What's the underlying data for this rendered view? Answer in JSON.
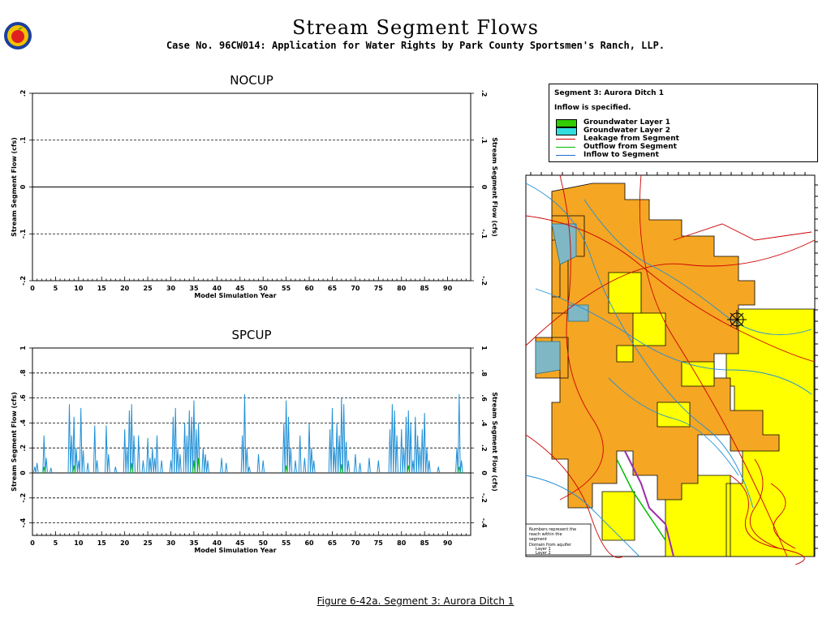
{
  "header": {
    "title": "Stream Segment Flows",
    "subtitle": "Case No. 96CW014: Application for Water Rights by Park County Sportsmen's Ranch, LLP."
  },
  "footer": {
    "caption": "Figure 6-42a.   Segment 3: Aurora Ditch 1"
  },
  "legend": {
    "segment": "Segment 3: Aurora Ditch 1",
    "inflow_note": "Inflow is specified.",
    "items": [
      {
        "label": "Groundwater Layer 1",
        "color": "#33cc00",
        "kind": "swatch"
      },
      {
        "label": "Groundwater Layer 2",
        "color": "#33dddd",
        "kind": "swatch"
      },
      {
        "label": "Leakage from Segment",
        "color": "#cc0000",
        "kind": "line"
      },
      {
        "label": "Outflow from Segment",
        "color": "#00bb00",
        "kind": "line"
      },
      {
        "label": "Inflow to Segment",
        "color": "#1f6fd6",
        "kind": "line"
      }
    ]
  },
  "map": {
    "colors": {
      "layer1_fill": "#f5a623",
      "layer2_fill": "#ffff00",
      "roads": "#cc0000",
      "streams": "#1f8fd6"
    },
    "note_lines": [
      "Numbers represent the",
      "reach within the",
      "segment",
      "Domain from aquifer",
      "Layer 1",
      "Layer 2"
    ]
  },
  "chart_data": [
    {
      "type": "line",
      "title": "NOCUP",
      "xlabel": "Model Simulation Year",
      "ylabel": "Stream Segment Flow (cfs)",
      "xlim": [
        0,
        95
      ],
      "ylim": [
        -0.2,
        0.2
      ],
      "xticks": [
        "0",
        "5",
        "10",
        "15",
        "20",
        "25",
        "30",
        "35",
        "40",
        "45",
        "50",
        "55",
        "60",
        "65",
        "70",
        "75",
        "80",
        "85",
        "90"
      ],
      "yticks": [
        ".2",
        ".1",
        "0",
        "-.1",
        "-.2"
      ],
      "grid": "dashed horizontal",
      "series": []
    },
    {
      "type": "line",
      "title": "SPCUP",
      "xlabel": "Model Simulation Year",
      "ylabel": "Stream Segment Flow (cfs)",
      "xlim": [
        0,
        95
      ],
      "ylim": [
        -0.5,
        1.0
      ],
      "xticks": [
        "0",
        "5",
        "10",
        "15",
        "20",
        "25",
        "30",
        "35",
        "40",
        "45",
        "50",
        "55",
        "60",
        "65",
        "70",
        "75",
        "80",
        "85",
        "90"
      ],
      "yticks": [
        "1",
        ".8",
        ".6",
        ".4",
        ".2",
        "0",
        "-.2",
        "-.4"
      ],
      "grid": "dashed horizontal",
      "series": [
        {
          "color": "#1f8fd6",
          "peaks": [
            [
              0.5,
              0.05
            ],
            [
              1.0,
              0.08
            ],
            [
              2.5,
              0.3
            ],
            [
              3.0,
              0.12
            ],
            [
              4.0,
              0.04
            ],
            [
              8.0,
              0.55
            ],
            [
              8.5,
              0.3
            ],
            [
              9.0,
              0.45
            ],
            [
              9.5,
              0.2
            ],
            [
              10.0,
              0.1
            ],
            [
              10.5,
              0.52
            ],
            [
              11.0,
              0.18
            ],
            [
              12.0,
              0.08
            ],
            [
              13.5,
              0.38
            ],
            [
              14.0,
              0.1
            ],
            [
              16.0,
              0.38
            ],
            [
              16.5,
              0.15
            ],
            [
              18.0,
              0.05
            ],
            [
              20.0,
              0.35
            ],
            [
              20.5,
              0.2
            ],
            [
              21.0,
              0.5
            ],
            [
              21.5,
              0.55
            ],
            [
              22.0,
              0.3
            ],
            [
              23.0,
              0.3
            ],
            [
              24.0,
              0.1
            ],
            [
              25.0,
              0.28
            ],
            [
              25.5,
              0.12
            ],
            [
              26.0,
              0.2
            ],
            [
              26.5,
              0.12
            ],
            [
              27.0,
              0.3
            ],
            [
              28.0,
              0.1
            ],
            [
              30.0,
              0.1
            ],
            [
              30.5,
              0.45
            ],
            [
              31.0,
              0.52
            ],
            [
              31.5,
              0.2
            ],
            [
              32.0,
              0.15
            ],
            [
              33.0,
              0.4
            ],
            [
              33.5,
              0.3
            ],
            [
              34.0,
              0.5
            ],
            [
              34.5,
              0.45
            ],
            [
              35.0,
              0.58
            ],
            [
              35.5,
              0.35
            ],
            [
              36.0,
              0.4
            ],
            [
              37.0,
              0.2
            ],
            [
              37.5,
              0.15
            ],
            [
              38.0,
              0.1
            ],
            [
              41.0,
              0.12
            ],
            [
              42.0,
              0.08
            ],
            [
              45.5,
              0.3
            ],
            [
              46.0,
              0.63
            ],
            [
              46.5,
              0.2
            ],
            [
              47.0,
              0.05
            ],
            [
              49.0,
              0.15
            ],
            [
              50.0,
              0.1
            ],
            [
              54.5,
              0.4
            ],
            [
              55.0,
              0.58
            ],
            [
              55.5,
              0.45
            ],
            [
              56.0,
              0.2
            ],
            [
              57.0,
              0.1
            ],
            [
              58.0,
              0.3
            ],
            [
              59.0,
              0.12
            ],
            [
              60.0,
              0.4
            ],
            [
              60.5,
              0.2
            ],
            [
              61.0,
              0.1
            ],
            [
              64.5,
              0.35
            ],
            [
              65.0,
              0.52
            ],
            [
              65.5,
              0.2
            ],
            [
              66.0,
              0.4
            ],
            [
              66.5,
              0.3
            ],
            [
              67.0,
              0.6
            ],
            [
              67.5,
              0.55
            ],
            [
              68.0,
              0.25
            ],
            [
              68.5,
              0.1
            ],
            [
              70.0,
              0.15
            ],
            [
              71.0,
              0.08
            ],
            [
              73.0,
              0.12
            ],
            [
              75.0,
              0.1
            ],
            [
              77.5,
              0.35
            ],
            [
              78.0,
              0.55
            ],
            [
              78.5,
              0.5
            ],
            [
              79.0,
              0.3
            ],
            [
              80.0,
              0.35
            ],
            [
              80.5,
              0.2
            ],
            [
              81.0,
              0.45
            ],
            [
              81.5,
              0.5
            ],
            [
              82.0,
              0.4
            ],
            [
              82.5,
              0.1
            ],
            [
              83.0,
              0.45
            ],
            [
              83.5,
              0.3
            ],
            [
              84.0,
              0.2
            ],
            [
              84.5,
              0.35
            ],
            [
              85.0,
              0.48
            ],
            [
              85.5,
              0.2
            ],
            [
              86.0,
              0.1
            ],
            [
              88.0,
              0.05
            ],
            [
              92.0,
              0.2
            ],
            [
              92.5,
              0.63
            ],
            [
              93.0,
              0.1
            ]
          ]
        },
        {
          "color": "#00bb00",
          "peaks": [
            [
              2.5,
              0.05
            ],
            [
              9.0,
              0.06
            ],
            [
              21.5,
              0.08
            ],
            [
              35.0,
              0.1
            ],
            [
              36.0,
              0.12
            ],
            [
              55.0,
              0.06
            ],
            [
              67.0,
              0.07
            ],
            [
              81.5,
              0.06
            ],
            [
              92.5,
              0.05
            ]
          ]
        }
      ]
    }
  ]
}
